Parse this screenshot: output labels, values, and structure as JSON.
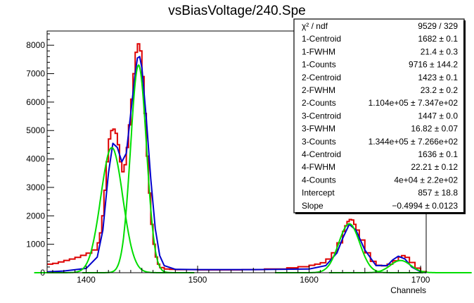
{
  "chart_data": {
    "type": "line",
    "title": "vsBiasVoltage/240.Spe",
    "xlabel": "Channels",
    "ylabel": "",
    "xlim": [
      1365,
      1705
    ],
    "ylim": [
      0,
      8500
    ],
    "xticks": [
      1400,
      1500,
      1600,
      1700
    ],
    "yticks": [
      0,
      1000,
      2000,
      3000,
      4000,
      5000,
      6000,
      7000,
      8000
    ],
    "grid": false,
    "colors": {
      "data": "#dd0000",
      "total_fit": "#0000cc",
      "components": "#00dd00"
    },
    "series": [
      {
        "style": "histogram",
        "color": "#dd0000",
        "x": [
          1365,
          1370,
          1375,
          1380,
          1385,
          1390,
          1395,
          1400,
          1405,
          1410,
          1412,
          1414,
          1416,
          1418,
          1420,
          1422,
          1424,
          1426,
          1428,
          1430,
          1432,
          1434,
          1436,
          1438,
          1440,
          1442,
          1444,
          1446,
          1448,
          1450,
          1452,
          1454,
          1456,
          1458,
          1460,
          1462,
          1464,
          1466,
          1470,
          1475,
          1480,
          1490,
          1500,
          1520,
          1540,
          1560,
          1580,
          1590,
          1600,
          1605,
          1610,
          1615,
          1620,
          1625,
          1630,
          1632,
          1634,
          1636,
          1638,
          1640,
          1642,
          1645,
          1650,
          1655,
          1660,
          1665,
          1670,
          1675,
          1680,
          1683,
          1686,
          1690,
          1695,
          1700,
          1705
        ],
        "y": [
          300,
          330,
          380,
          430,
          480,
          540,
          610,
          690,
          800,
          1050,
          1400,
          2000,
          2900,
          3900,
          4700,
          5000,
          5050,
          4900,
          4500,
          3900,
          3550,
          3800,
          4400,
          5200,
          6100,
          7000,
          7750,
          8050,
          7800,
          6900,
          5600,
          4100,
          2800,
          1700,
          1000,
          550,
          300,
          180,
          130,
          120,
          110,
          110,
          100,
          100,
          110,
          130,
          170,
          210,
          260,
          300,
          350,
          480,
          700,
          1050,
          1450,
          1650,
          1800,
          1870,
          1850,
          1700,
          1500,
          1150,
          700,
          400,
          260,
          240,
          300,
          420,
          550,
          600,
          540,
          360,
          160,
          40,
          0
        ]
      },
      {
        "name": "",
        "style": "line",
        "color": "#0000cc",
        "x": [
          1365,
          1380,
          1400,
          1410,
          1415,
          1420,
          1424,
          1428,
          1432,
          1436,
          1440,
          1444,
          1446,
          1448,
          1450,
          1454,
          1458,
          1462,
          1466,
          1470,
          1480,
          1500,
          1550,
          1600,
          1615,
          1625,
          1630,
          1636,
          1642,
          1650,
          1660,
          1670,
          1675,
          1680,
          1686,
          1692,
          1700,
          1705
        ],
        "y": [
          30,
          60,
          150,
          550,
          1500,
          3500,
          4550,
          4400,
          3900,
          4200,
          5600,
          7000,
          7550,
          7600,
          7200,
          5400,
          3300,
          1550,
          600,
          250,
          120,
          110,
          110,
          130,
          250,
          700,
          1200,
          1700,
          1500,
          800,
          250,
          250,
          450,
          580,
          480,
          200,
          30,
          0
        ]
      },
      {
        "name": "",
        "style": "line",
        "color": "#00dd00",
        "centroid": 1423,
        "fwhm": 23.2,
        "peak": 4400
      },
      {
        "name": "",
        "style": "line",
        "color": "#00dd00",
        "centroid": 1447,
        "fwhm": 16.82,
        "peak": 7300
      },
      {
        "name": "",
        "style": "line",
        "color": "#00dd00",
        "centroid": 1636,
        "fwhm": 22.21,
        "peak": 1720
      },
      {
        "name": "",
        "style": "line",
        "color": "#00dd00",
        "centroid": 1682,
        "fwhm": 21.4,
        "peak": 430
      }
    ]
  },
  "stats": {
    "rows": [
      {
        "label": "χ² / ndf",
        "value": "9529 / 329"
      },
      {
        "label": "1-Centroid",
        "value": "1682 ± 0.1"
      },
      {
        "label": "1-FWHM",
        "value": "21.4 ± 0.3"
      },
      {
        "label": "1-Counts",
        "value": "9716 ± 144.2"
      },
      {
        "label": "2-Centroid",
        "value": "1423 ± 0.1"
      },
      {
        "label": "2-FWHM",
        "value": "23.2 ± 0.2"
      },
      {
        "label": "2-Counts",
        "value": "1.104e+05 ± 7.347e+02"
      },
      {
        "label": "3-Centroid",
        "value": "1447 ± 0.0"
      },
      {
        "label": "3-FWHM",
        "value": "16.82 ± 0.07"
      },
      {
        "label": "3-Counts",
        "value": "1.344e+05 ± 7.266e+02"
      },
      {
        "label": "4-Centroid",
        "value": "1636 ± 0.1"
      },
      {
        "label": "4-FWHM",
        "value": "22.21 ± 0.12"
      },
      {
        "label": "4-Counts",
        "value": "4e+04 ± 2.2e+02"
      },
      {
        "label": "Intercept",
        "value": "857 ± 18.8"
      },
      {
        "label": "Slope",
        "value": "−0.4994 ± 0.0123"
      }
    ]
  }
}
